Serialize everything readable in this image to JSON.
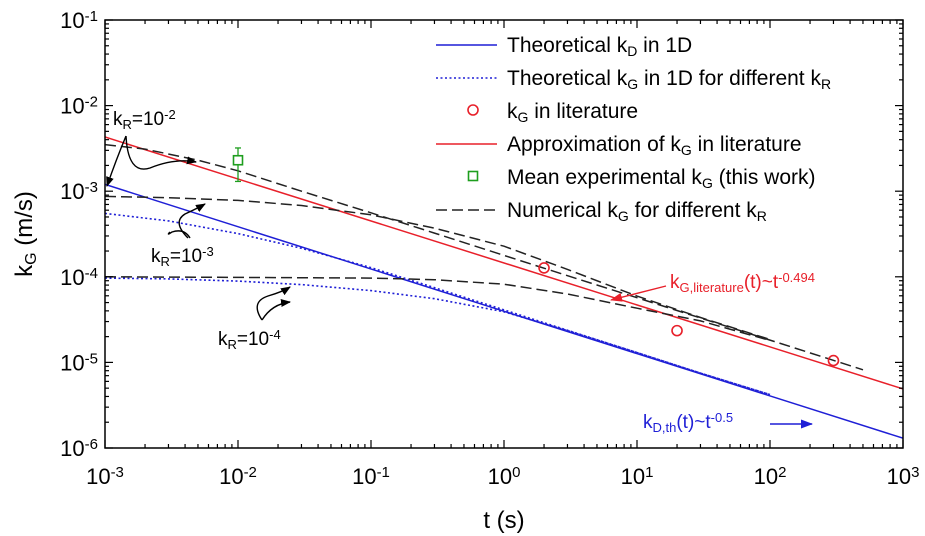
{
  "chart_data": {
    "type": "line",
    "xlabel": "t (s)",
    "ylabel": "k_G (m/s)",
    "xscale": "log",
    "yscale": "log",
    "xlim": [
      0.001,
      1000
    ],
    "ylim": [
      1e-06,
      0.1
    ],
    "grid": false,
    "legend_position": "top-right",
    "x_ticks": [
      {
        "base": "10",
        "exp": "-3"
      },
      {
        "base": "10",
        "exp": "-2"
      },
      {
        "base": "10",
        "exp": "-1"
      },
      {
        "base": "10",
        "exp": "0"
      },
      {
        "base": "10",
        "exp": "1"
      },
      {
        "base": "10",
        "exp": "2"
      },
      {
        "base": "10",
        "exp": "3"
      }
    ],
    "y_ticks": [
      {
        "base": "10",
        "exp": "-6"
      },
      {
        "base": "10",
        "exp": "-5"
      },
      {
        "base": "10",
        "exp": "-4"
      },
      {
        "base": "10",
        "exp": "-3"
      },
      {
        "base": "10",
        "exp": "-2"
      },
      {
        "base": "10",
        "exp": "-1"
      }
    ],
    "legend": [
      {
        "parts": [
          [
            "Theoretical k",
            ""
          ],
          [
            "D",
            "sub"
          ],
          [
            " in 1D",
            ""
          ]
        ],
        "style": "solid",
        "color": "#1f1fd6"
      },
      {
        "parts": [
          [
            "Theoretical k",
            ""
          ],
          [
            "G",
            "sub"
          ],
          [
            " in 1D for different k",
            ""
          ],
          [
            "R",
            "sub"
          ]
        ],
        "style": "dotted",
        "color": "#1f1fd6"
      },
      {
        "parts": [
          [
            "k",
            ""
          ],
          [
            "G",
            "sub"
          ],
          [
            " in literature",
            ""
          ]
        ],
        "style": "circle",
        "color": "#e8202a"
      },
      {
        "parts": [
          [
            "Approximation of k",
            ""
          ],
          [
            "G",
            "sub"
          ],
          [
            " in literature",
            ""
          ]
        ],
        "style": "solid",
        "color": "#e8202a"
      },
      {
        "parts": [
          [
            "Mean experimental k",
            ""
          ],
          [
            "G",
            "sub"
          ],
          [
            " (this work)",
            ""
          ]
        ],
        "style": "square",
        "color": "#1e9e1e"
      },
      {
        "parts": [
          [
            "Numerical k",
            ""
          ],
          [
            "G",
            "sub"
          ],
          [
            " for different k",
            ""
          ],
          [
            "R",
            "sub"
          ]
        ],
        "style": "dashed",
        "color": "#222222"
      }
    ],
    "series": [
      {
        "name": "Theoretical kD in 1D",
        "style": "solid",
        "color": "#1f1fd6",
        "x": [
          0.001,
          1000
        ],
        "y": [
          0.0012,
          1.3e-06
        ]
      },
      {
        "name": "Theoretical kG in 1D for different kR (kR=10^-3)",
        "style": "dotted",
        "color": "#1f1fd6",
        "x": [
          0.001,
          0.003,
          0.01,
          0.03,
          0.1,
          0.3,
          1,
          3,
          10,
          30,
          100
        ],
        "y": [
          0.00055,
          0.00045,
          0.00032,
          0.000215,
          0.000128,
          7.45e-05,
          4.1e-05,
          2.37e-05,
          1.3e-05,
          7.5e-06,
          4.2e-06
        ]
      },
      {
        "name": "Theoretical kG in 1D for different kR (kR=10^-4)",
        "style": "dotted",
        "color": "#1f1fd6",
        "x": [
          0.001,
          0.003,
          0.01,
          0.03,
          0.1,
          0.3,
          1,
          3,
          10,
          30,
          100
        ],
        "y": [
          9.65e-05,
          9.45e-05,
          8.9e-05,
          8.1e-05,
          6.9e-05,
          5.55e-05,
          3.9e-05,
          2.35e-05,
          1.3e-05,
          7.5e-06,
          4.2e-06
        ]
      },
      {
        "name": "Approximation of kG in literature",
        "style": "solid",
        "color": "#e8202a",
        "x": [
          0.001,
          1000
        ],
        "y": [
          0.0043,
          4.9e-06
        ]
      },
      {
        "name": "Numerical kG (kR=10^-2)",
        "style": "dashed",
        "color": "#222222",
        "x": [
          0.001,
          0.002,
          0.005,
          0.01,
          0.03,
          0.1,
          0.3,
          1,
          3,
          10,
          30,
          100,
          500
        ],
        "y": [
          0.0035,
          0.0031,
          0.0023,
          0.00173,
          0.001,
          0.00056,
          0.000324,
          0.000178,
          0.000103,
          5.7e-05,
          3.3e-05,
          1.82e-05,
          8.2e-06
        ]
      },
      {
        "name": "Numerical kG (kR=10^-3)",
        "style": "dashed",
        "color": "#222222",
        "x": [
          0.001,
          0.003,
          0.01,
          0.03,
          0.1,
          0.3,
          1,
          3,
          10,
          30,
          100
        ],
        "y": [
          0.00087,
          0.00084,
          0.00078,
          0.00068,
          0.00053,
          0.00037,
          0.000228,
          0.000122,
          5.95e-05,
          3.35e-05,
          1.85e-05
        ]
      },
      {
        "name": "Numerical kG (kR=10^-4)",
        "style": "dashed",
        "color": "#222222",
        "x": [
          0.001,
          0.01,
          0.1,
          0.3,
          1,
          3,
          10,
          30,
          100
        ],
        "y": [
          0.0001,
          9.85e-05,
          9.65e-05,
          9.25e-05,
          8.2e-05,
          6.3e-05,
          4.3e-05,
          3.05e-05,
          1.8e-05
        ]
      }
    ],
    "points": [
      {
        "name": "kG in literature",
        "marker": "circle",
        "color": "#e8202a",
        "x": [
          2,
          20,
          300
        ],
        "y": [
          0.000127,
          2.35e-05,
          1.05e-05
        ]
      },
      {
        "name": "Mean experimental kG (this work)",
        "marker": "square",
        "color": "#1e9e1e",
        "x": [
          0.01
        ],
        "y": [
          0.0023
        ],
        "err_low": 0.0013,
        "err_high": 0.0032
      }
    ],
    "annotations": [
      {
        "id": "kr-1e-2",
        "parts": [
          [
            "k",
            ""
          ],
          [
            "R",
            "sub"
          ],
          [
            "=10",
            ""
          ],
          [
            "-2",
            "sup"
          ]
        ]
      },
      {
        "id": "kr-1e-3",
        "parts": [
          [
            "k",
            ""
          ],
          [
            "R",
            "sub"
          ],
          [
            "=10",
            ""
          ],
          [
            "-3",
            "sup"
          ]
        ]
      },
      {
        "id": "kr-1e-4",
        "parts": [
          [
            "k",
            ""
          ],
          [
            "R",
            "sub"
          ],
          [
            "=10",
            ""
          ],
          [
            "-4",
            "sup"
          ]
        ]
      },
      {
        "id": "kg-literature-fit",
        "color": "#e8202a",
        "parts": [
          [
            "k",
            ""
          ],
          [
            "G,literature",
            "sub"
          ],
          [
            "(t)~t",
            ""
          ],
          [
            "-0.494",
            "sup"
          ]
        ]
      },
      {
        "id": "kd-theory-fit",
        "color": "#1f1fd6",
        "parts": [
          [
            "k",
            ""
          ],
          [
            "D,th",
            "sub"
          ],
          [
            "(t)~t",
            ""
          ],
          [
            "-0.5",
            "sup"
          ]
        ]
      }
    ]
  }
}
